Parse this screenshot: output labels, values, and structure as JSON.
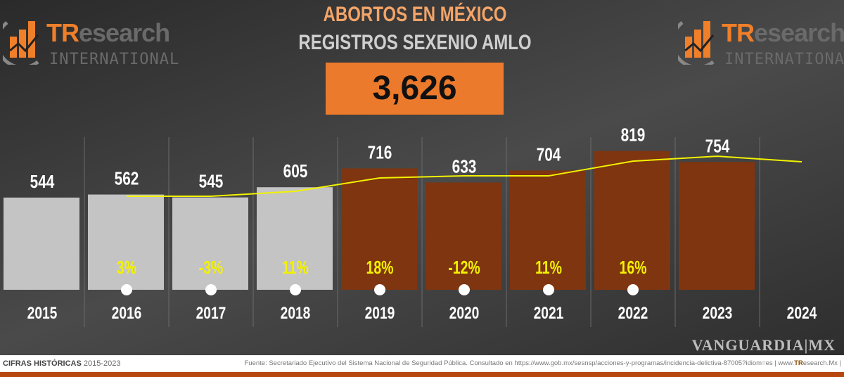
{
  "brand": {
    "logo_text_accent": "TR",
    "logo_text_rest": "esearch",
    "logo_sub": "INTERNATIONAL",
    "accent": "#ec7a2c"
  },
  "header": {
    "title": "ABORTOS EN MÉXICO",
    "subtitle": "REGISTROS SEXENIO AMLO",
    "total": "3,626"
  },
  "chart_data": {
    "type": "bar",
    "title": "ABORTOS EN MÉXICO",
    "categories": [
      "2015",
      "2016",
      "2017",
      "2018",
      "2019",
      "2020",
      "2021",
      "2022",
      "2023",
      "2024"
    ],
    "values": [
      544,
      562,
      545,
      605,
      716,
      633,
      704,
      819,
      754,
      null
    ],
    "value_labels": [
      "544",
      "562",
      "545",
      "605",
      "716",
      "633",
      "704",
      "819",
      "754",
      ""
    ],
    "pct_change": [
      "",
      "3%",
      "-3%",
      "11%",
      "18%",
      "-12%",
      "11%",
      "16%",
      "",
      ""
    ],
    "bar_colors": [
      "#c4c4c4",
      "#c4c4c4",
      "#c4c4c4",
      "#c4c4c4",
      "#7f3510",
      "#7f3510",
      "#7f3510",
      "#7f3510",
      "#7f3510",
      ""
    ],
    "trend_line": {
      "color": "#f2f200",
      "values": [
        null,
        552,
        552,
        581,
        660,
        672,
        672,
        759,
        788,
        755
      ]
    },
    "ylim": [
      0,
      850
    ],
    "grid": false,
    "legend": "none"
  },
  "footer": {
    "left_bold": "CIFRAS HISTÓRICAS",
    "left_range": "2015-2023",
    "source": "Fuente: Secretariado Ejecutivo del Sistema Nacional de Seguridad Pública. Consultado en https://www.gob.mx/sesnsp/acciones-y-programas/incidencia-delictiva-87005?idiom=es | www.",
    "source_brand": "TR",
    "source_end": "esearch.Mx |"
  },
  "watermark": "VANGUARDIA|MX"
}
